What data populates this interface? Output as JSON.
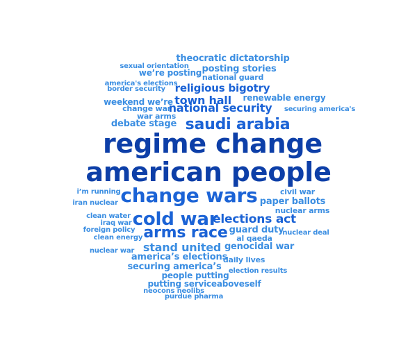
{
  "palette": {
    "dark": "#0d3fa8",
    "mid": "#1b63d6",
    "light": "#3b8ee2",
    "pale": "#5aa3ea"
  },
  "words": [
    {
      "text": "theocratic dictatorship",
      "tone": "light"
    },
    {
      "text": "sexual orientation",
      "tone": "light"
    },
    {
      "text": "posting stories",
      "tone": "light"
    },
    {
      "text": "we’re posting",
      "tone": "light"
    },
    {
      "text": "national guard",
      "tone": "light"
    },
    {
      "text": "america's elections",
      "tone": "light"
    },
    {
      "text": "border security",
      "tone": "light"
    },
    {
      "text": "religious bigotry",
      "tone": "mid"
    },
    {
      "text": "renewable energy",
      "tone": "light"
    },
    {
      "text": "weekend we’re",
      "tone": "light"
    },
    {
      "text": "town hall",
      "tone": "mid"
    },
    {
      "text": "change war",
      "tone": "light"
    },
    {
      "text": "national security",
      "tone": "mid"
    },
    {
      "text": "securing america's",
      "tone": "light"
    },
    {
      "text": "war arms",
      "tone": "light"
    },
    {
      "text": "debate stage",
      "tone": "light"
    },
    {
      "text": "saudi arabia",
      "tone": "mid"
    },
    {
      "text": "regime change",
      "tone": "dark"
    },
    {
      "text": "american people",
      "tone": "dark"
    },
    {
      "text": "i’m running",
      "tone": "light"
    },
    {
      "text": "change wars",
      "tone": "mid"
    },
    {
      "text": "civil war",
      "tone": "light"
    },
    {
      "text": "iran nuclear",
      "tone": "light"
    },
    {
      "text": "paper ballots",
      "tone": "light"
    },
    {
      "text": "nuclear arms",
      "tone": "light"
    },
    {
      "text": "clean water",
      "tone": "light"
    },
    {
      "text": "cold war",
      "tone": "mid"
    },
    {
      "text": "elections act",
      "tone": "mid"
    },
    {
      "text": "iraq war",
      "tone": "light"
    },
    {
      "text": "foreign policy",
      "tone": "light"
    },
    {
      "text": "guard duty",
      "tone": "light"
    },
    {
      "text": "nuclear deal",
      "tone": "light"
    },
    {
      "text": "arms race",
      "tone": "mid"
    },
    {
      "text": "clean energy",
      "tone": "light"
    },
    {
      "text": "al qaeda",
      "tone": "light"
    },
    {
      "text": "stand united",
      "tone": "light"
    },
    {
      "text": "genocidal war",
      "tone": "light"
    },
    {
      "text": "nuclear war",
      "tone": "light"
    },
    {
      "text": "america’s elections",
      "tone": "light"
    },
    {
      "text": "daily lives",
      "tone": "light"
    },
    {
      "text": "securing america’s",
      "tone": "light"
    },
    {
      "text": "election results",
      "tone": "light"
    },
    {
      "text": "people putting",
      "tone": "light"
    },
    {
      "text": "putting serviceaboveself",
      "tone": "light"
    },
    {
      "text": "neocons neolibs",
      "tone": "light"
    },
    {
      "text": "purdue pharma",
      "tone": "light"
    }
  ]
}
